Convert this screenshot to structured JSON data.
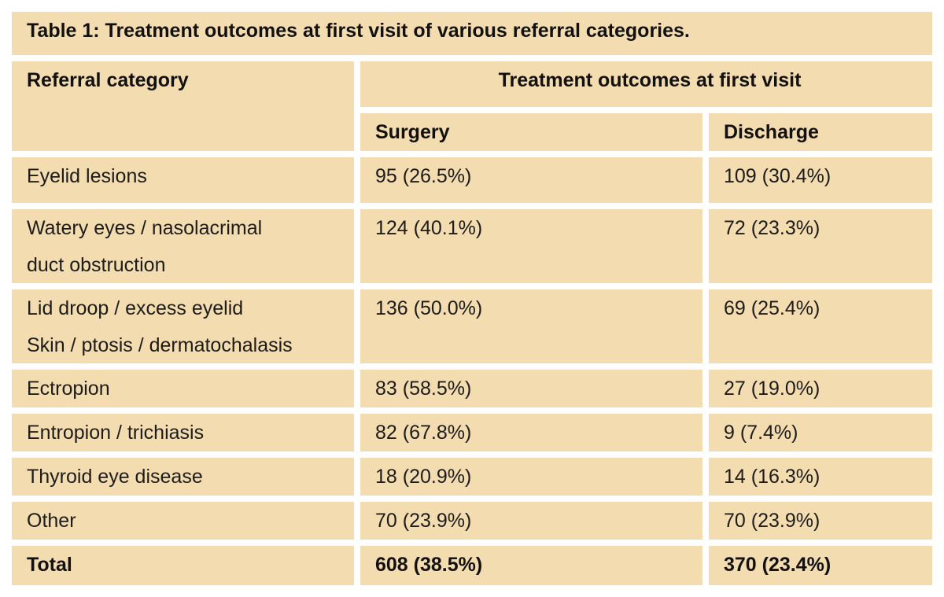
{
  "page": {
    "title": "Table 1: Treatment outcomes at first visit of various referral categories."
  },
  "table": {
    "column1_header": "Referral category",
    "group_header": "Treatment outcomes at first visit",
    "subheaders": {
      "surgery": "Surgery",
      "discharge": "Discharge"
    },
    "rows": [
      {
        "category": "Eyelid lesions",
        "surgery": "95 (26.5%)",
        "discharge": "109 (30.4%)"
      },
      {
        "category": "Watery eyes / nasolacrimal",
        "category_line2": "duct obstruction",
        "surgery": "124 (40.1%)",
        "discharge": "72 (23.3%)"
      },
      {
        "category": "Lid droop / excess eyelid",
        "category_line2": "Skin / ptosis / dermatochalasis",
        "surgery": "136 (50.0%)",
        "discharge": "69 (25.4%)"
      },
      {
        "category": "Ectropion",
        "surgery": "83 (58.5%)",
        "discharge": "27 (19.0%)"
      },
      {
        "category": "Entropion / trichiasis",
        "surgery": "82 (67.8%)",
        "discharge": "9 (7.4%)"
      },
      {
        "category": "Thyroid eye disease",
        "surgery": "18 (20.9%)",
        "discharge": "14 (16.3%)"
      },
      {
        "category": "Other",
        "surgery": "70 (23.9%)",
        "discharge": "70 (23.9%)"
      }
    ],
    "total": {
      "category": "Total",
      "surgery": "608 (38.5%)",
      "discharge": "370 (23.4%)"
    }
  },
  "colors": {
    "cell_background": "#f2dcb0",
    "gap_background": "#ffffff",
    "text": "#1d1c1a"
  }
}
